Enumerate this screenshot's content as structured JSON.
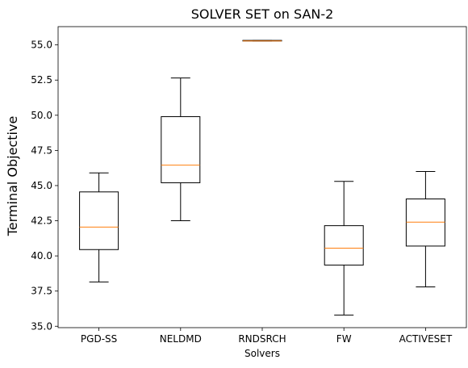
{
  "chart_data": {
    "type": "box",
    "title": "SOLVER SET on SAN-2",
    "xlabel": "Solvers",
    "ylabel": "Terminal Objective",
    "ylim": [
      34.9,
      56.3
    ],
    "yticks": [
      35.0,
      37.5,
      40.0,
      42.5,
      45.0,
      47.5,
      50.0,
      52.5,
      55.0
    ],
    "ytick_labels": [
      "35.0",
      "37.5",
      "40.0",
      "42.5",
      "45.0",
      "47.5",
      "50.0",
      "52.5",
      "55.0"
    ],
    "grid": false,
    "box_color": "#000000",
    "median_color": "#ff7f0e",
    "categories": [
      "PGD-SS",
      "NELDMD",
      "RNDSRCH",
      "FW",
      "ACTIVESET"
    ],
    "boxes": [
      {
        "label": "PGD-SS",
        "whisker_low": 38.15,
        "q1": 40.45,
        "median": 42.05,
        "q3": 44.55,
        "whisker_high": 45.9
      },
      {
        "label": "NELDMD",
        "whisker_low": 42.5,
        "q1": 45.2,
        "median": 46.45,
        "q3": 49.9,
        "whisker_high": 52.65
      },
      {
        "label": "RNDSRCH",
        "whisker_low": 55.28,
        "q1": 55.28,
        "median": 55.28,
        "q3": 55.32,
        "whisker_high": 55.32
      },
      {
        "label": "FW",
        "whisker_low": 35.8,
        "q1": 39.35,
        "median": 40.55,
        "q3": 42.15,
        "whisker_high": 45.3
      },
      {
        "label": "ACTIVESET",
        "whisker_low": 37.8,
        "q1": 40.7,
        "median": 42.4,
        "q3": 44.05,
        "whisker_high": 46.0
      }
    ]
  }
}
